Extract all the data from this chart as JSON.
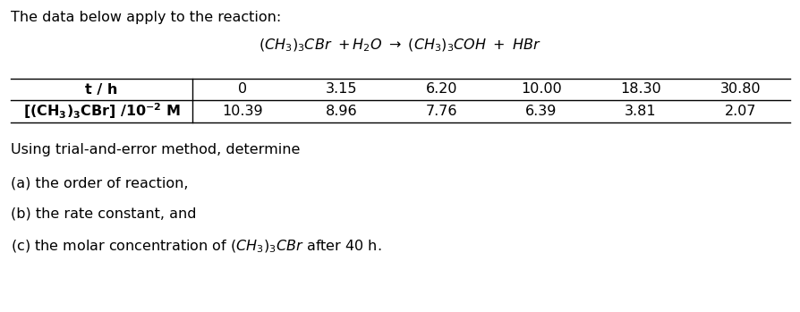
{
  "intro_text": "The data below apply to the reaction:",
  "col_header_1": "t / h",
  "t_values": [
    "0",
    "3.15",
    "6.20",
    "10.00",
    "18.30",
    "30.80"
  ],
  "conc_values": [
    "10.39",
    "8.96",
    "7.76",
    "6.39",
    "3.81",
    "2.07"
  ],
  "question_intro": "Using trial-and-error method, determine",
  "q_a": "(a) the order of reaction,",
  "q_b": "(b) the rate constant, and",
  "bg_color": "#ffffff",
  "text_color": "#000000",
  "font_size": 11.5,
  "table_line_color": "#000000"
}
